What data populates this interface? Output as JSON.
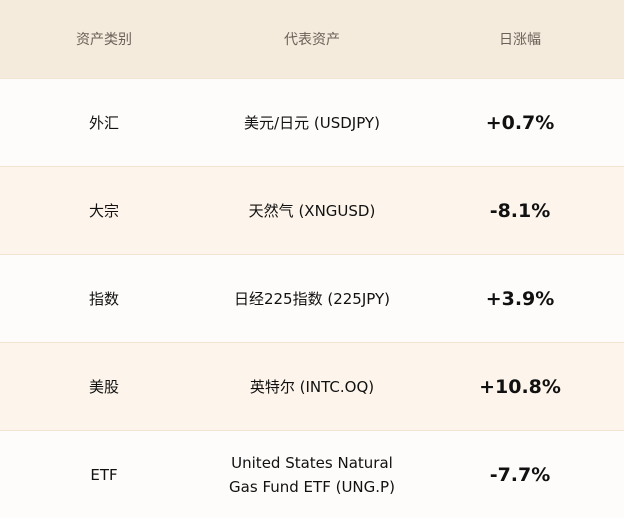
{
  "table": {
    "headers": [
      "资产类别",
      "代表资产",
      "日涨幅"
    ],
    "rows": [
      {
        "category": "外汇",
        "asset": "美元/日元 (USDJPY)",
        "change": "+0.7%"
      },
      {
        "category": "大宗",
        "asset": "天然气 (XNGUSD)",
        "change": "-8.1%"
      },
      {
        "category": "指数",
        "asset": "日经225指数 (225JPY)",
        "change": "+3.9%"
      },
      {
        "category": "美股",
        "asset": "英特尔 (INTC.OQ)",
        "change": "+10.8%"
      },
      {
        "category": "ETF",
        "asset": "United States Natural Gas Fund ETF (UNG.P)",
        "change": "-7.7%"
      }
    ]
  },
  "colors": {
    "header_bg": "#f5ebdd",
    "row_odd": "#fefcfa",
    "row_even": "#fdf5eb"
  }
}
